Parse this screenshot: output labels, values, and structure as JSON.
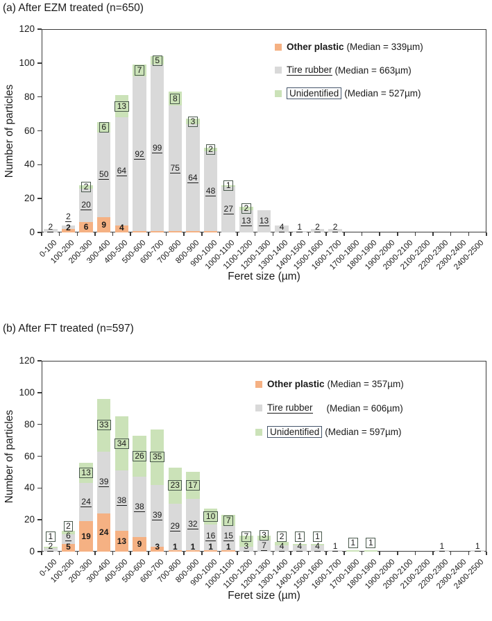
{
  "colors": {
    "other": "#F5B183",
    "tire": "#D9D9D9",
    "unid": "#CBE2B8",
    "axis": "#3A3A3A",
    "text": "#1A1A1A",
    "bar_box_border": "#47574A",
    "legend_box_border": "#44546A"
  },
  "chart_data": [
    {
      "type": "bar",
      "stacked": true,
      "title": "(a) After EZM treated (n=650)",
      "n": 650,
      "xlabel": "Feret size (µm)",
      "ylabel": "Number of particles",
      "ylim": [
        0,
        120
      ],
      "yticks": [
        0,
        20,
        40,
        60,
        80,
        100,
        120
      ],
      "grid": false,
      "legend_position": "top-right-inside",
      "categories": [
        "0-100",
        "100-200",
        "200-300",
        "300-400",
        "400-500",
        "500-600",
        "600-700",
        "700-800",
        "800-900",
        "900-1000",
        "1000-1100",
        "1100-1200",
        "1200-1300",
        "1300-1400",
        "1400-1500",
        "1500-1600",
        "1600-1700",
        "1700-1800",
        "1800-1900",
        "1900-2000",
        "2000-2100",
        "2100-2200",
        "2200-2300",
        "2300-2400",
        "2400-2500"
      ],
      "series": [
        {
          "name": "Other plastic",
          "median": "(Median = 339µm)",
          "style": "bold",
          "values": [
            0,
            2,
            6,
            9,
            4,
            0,
            0,
            0,
            0,
            0,
            0,
            0,
            0,
            0,
            0,
            0,
            0,
            0,
            0,
            0,
            0,
            0,
            0,
            0,
            0
          ]
        },
        {
          "name": "Tire rubber",
          "median": "(Median = 663µm)",
          "style": "underline",
          "values": [
            2,
            2,
            20,
            50,
            64,
            92,
            99,
            75,
            64,
            48,
            27,
            13,
            13,
            4,
            1,
            2,
            2,
            0,
            0,
            0,
            0,
            0,
            0,
            0,
            0
          ]
        },
        {
          "name": "Unidentified",
          "median": "(Median = 527µm)",
          "style": "box",
          "values": [
            0,
            0,
            2,
            6,
            13,
            7,
            5,
            8,
            3,
            2,
            1,
            2,
            0,
            0,
            0,
            0,
            0,
            0,
            0,
            0,
            0,
            0,
            0,
            0,
            0
          ]
        }
      ],
      "unlabeled_trace_other_bins": [
        "500-600",
        "600-700",
        "700-800",
        "800-900",
        "900-1000"
      ]
    },
    {
      "type": "bar",
      "stacked": true,
      "title": "(b) After FT treated (n=597)",
      "n": 597,
      "xlabel": "Feret size (µm)",
      "ylabel": "Number of particles",
      "ylim": [
        0,
        120
      ],
      "yticks": [
        0,
        20,
        40,
        60,
        80,
        100,
        120
      ],
      "grid": false,
      "legend_position": "top-right-inside",
      "categories": [
        "0-100",
        "100-200",
        "200-300",
        "300-400",
        "400-500",
        "500-600",
        "600-700",
        "700-800",
        "800-900",
        "900-1000",
        "1000-1100",
        "1100-1200",
        "1200-1300",
        "1300-1400",
        "1400-1500",
        "1500-1600",
        "1600-1700",
        "1700-1800",
        "1800-1900",
        "1900-2000",
        "2000-2100",
        "2100-2200",
        "2200-2300",
        "2300-2400",
        "2400-2500"
      ],
      "series": [
        {
          "name": "Other plastic",
          "median": "(Median = 357µm)",
          "style": "bold",
          "values": [
            0,
            5,
            19,
            24,
            13,
            9,
            3,
            1,
            1,
            1,
            1,
            0,
            0,
            0,
            0,
            0,
            0,
            0,
            0,
            0,
            0,
            0,
            0,
            0,
            0
          ]
        },
        {
          "name": "Tire rubber",
          "median": "(Median = 606µm)",
          "style": "underline",
          "values": [
            2,
            6,
            24,
            39,
            38,
            38,
            39,
            29,
            32,
            16,
            15,
            3,
            7,
            4,
            4,
            4,
            1,
            0,
            0,
            0,
            0,
            0,
            1,
            0,
            1
          ]
        },
        {
          "name": "Unidentified",
          "median": "(Median = 597µm)",
          "style": "box",
          "values": [
            1,
            2,
            13,
            33,
            34,
            26,
            35,
            23,
            17,
            10,
            7,
            7,
            3,
            2,
            1,
            1,
            0,
            1,
            1,
            0,
            0,
            0,
            0,
            0,
            0
          ]
        }
      ],
      "unlabeled_trace_other_bins": []
    }
  ]
}
